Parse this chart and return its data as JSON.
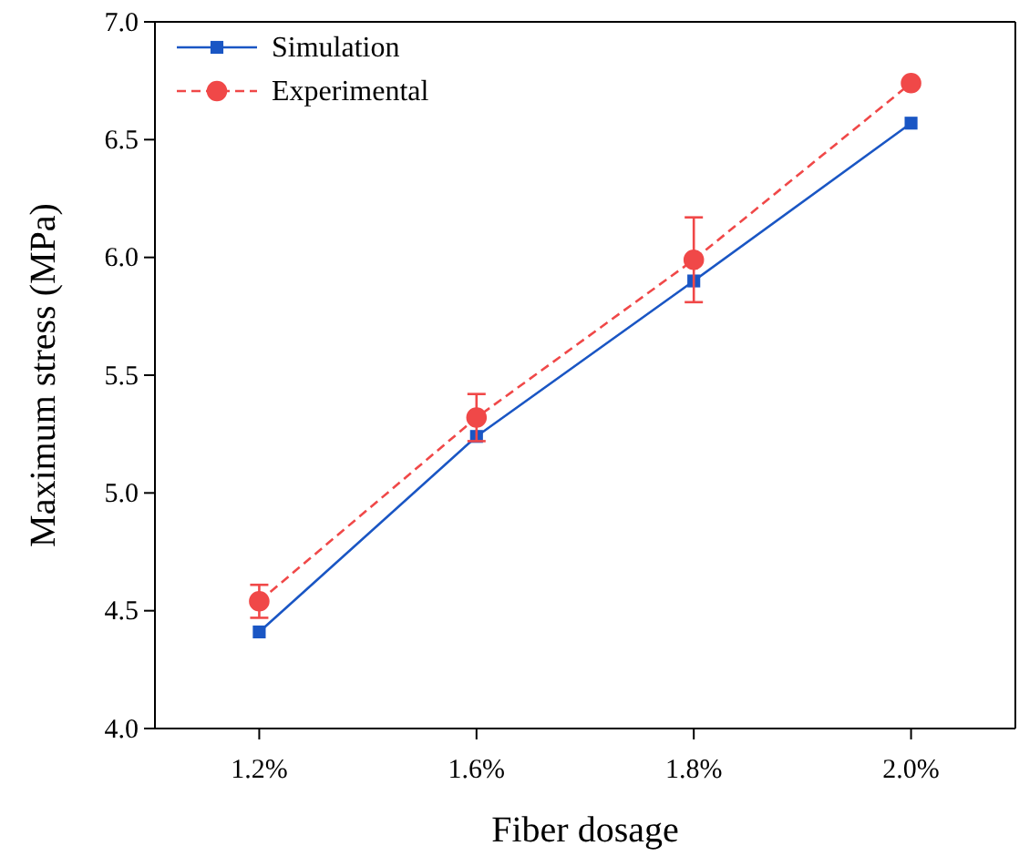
{
  "chart_data": {
    "type": "line",
    "xlabel": "Fiber dosage",
    "ylabel": "Maximum stress (MPa)",
    "categories": [
      "1.2%",
      "1.6%",
      "1.8%",
      "2.0%"
    ],
    "series": [
      {
        "name": "Simulation",
        "color": "#1a56c4",
        "values": [
          4.41,
          5.24,
          5.9,
          6.57
        ],
        "marker": "square",
        "line_style": "solid"
      },
      {
        "name": "Experimental",
        "color": "#f04848",
        "values": [
          4.54,
          5.32,
          5.99,
          6.74
        ],
        "marker": "circle",
        "line_style": "dashed",
        "errors": [
          0.07,
          0.1,
          0.18,
          null
        ]
      }
    ],
    "ylim": [
      4.0,
      7.0
    ],
    "yticks": [
      {
        "value": 4,
        "label": "4.0"
      },
      4.5,
      {
        "value": 5,
        "label": "5.0"
      },
      5.5,
      {
        "value": 6,
        "label": "6.0"
      },
      6.5,
      {
        "value": 7,
        "label": "7.0"
      }
    ],
    "grid": false,
    "legend": "top left"
  }
}
